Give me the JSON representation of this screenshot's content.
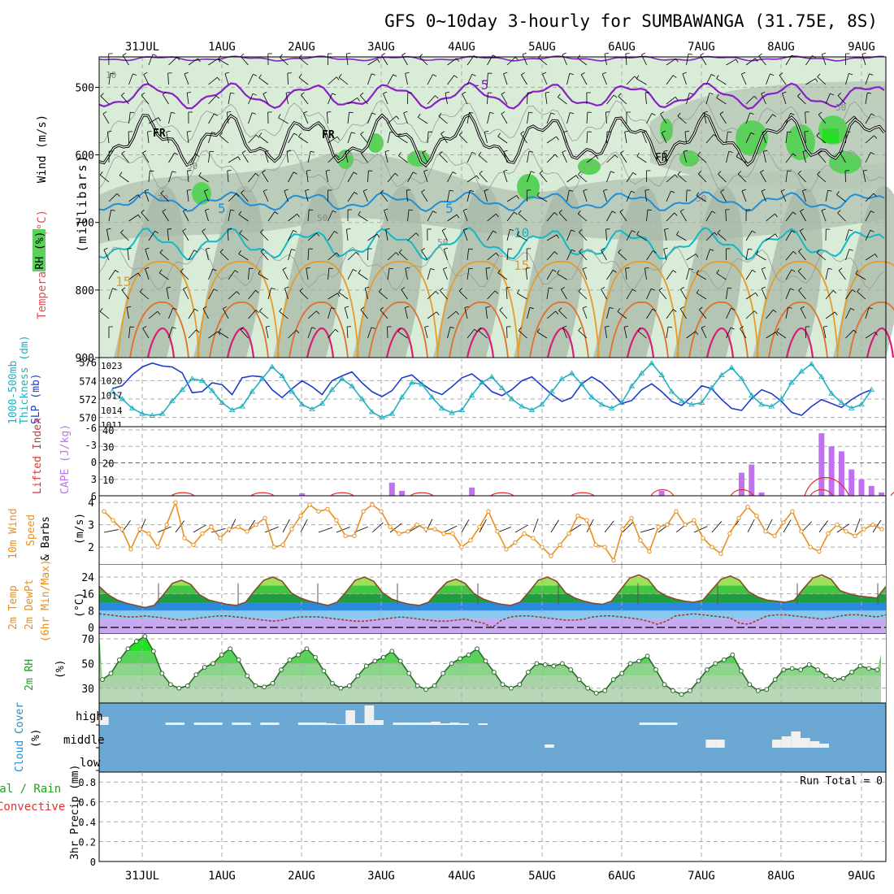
{
  "title": "GFS 0~10day 3-hourly for SUMBAWANGA (31.75E, 8S)",
  "dates": [
    "31JUL",
    "1AUG",
    "2AUG",
    "3AUG",
    "4AUG",
    "5AUG",
    "6AUG",
    "7AUG",
    "8AUG",
    "9AUG"
  ],
  "run_total": "Run Total = 0",
  "colors": {
    "rh_fill": "#d8ecd8",
    "rh_grey": "#a8b8a8",
    "rh_green": "#5ad25a",
    "temp_m5": "#8a1fc8",
    "temp_5": "#1f8fd8",
    "temp_10": "#12b8c8",
    "temp_15": "#e89a2a",
    "temp_20": "#e0702a",
    "temp_25": "#d81e78",
    "thickness": "#20b0c0",
    "slp": "#1e3cc8",
    "cape": "#c070f0",
    "li": "#e03030",
    "wind": "#e8901e",
    "cloud": "#6ba8d4"
  },
  "panels": {
    "upper": {
      "ylabel_wind": "Wind (m/s)",
      "ylabel_temp": "Temperature (°C)",
      "ylabel_rh": "RH (%)",
      "ylabel_mb": "(millibars)",
      "yticks": [
        "500",
        "600",
        "700",
        "800",
        "900"
      ],
      "contour_labels": {
        "fr": "FR",
        "m5": "-5",
        "p5": "5",
        "p10": "10",
        "p15": "15",
        "rh10": "10",
        "rh30": "30",
        "rh50": "50"
      }
    },
    "thickness": {
      "ylabel_a": "1000-500mb",
      "ylabel_b": "Thickness (dm)",
      "ylabel_c": "SLP (mb)",
      "ticks_left": [
        "576",
        "574",
        "572",
        "570"
      ],
      "ticks_right": [
        "1023",
        "1020",
        "1017",
        "1014",
        "1011"
      ]
    },
    "cape": {
      "ylabel_a": "Lifted Index",
      "ylabel_b": "CAPE (J/kg)",
      "ticks_left": [
        "-6",
        "-3",
        "0",
        "3",
        "6"
      ],
      "ticks_right": [
        "40",
        "30",
        "20",
        "10"
      ]
    },
    "wind": {
      "ylabel_a": "10m Wind",
      "ylabel_b": "Speed",
      "ylabel_c": "& Barbs",
      "ylabel_d": "(m/s)",
      "ticks": [
        "4",
        "3",
        "2"
      ]
    },
    "temp": {
      "ylabel_a": "2m Temp",
      "ylabel_b": "2m DewPt",
      "ylabel_c": "(6hr Min/Max)",
      "ylabel_d": "(°C)",
      "ticks": [
        "24",
        "16",
        "8",
        "0"
      ]
    },
    "rh": {
      "ylabel_a": "2m RH",
      "ylabel_b": "(%)",
      "ticks": [
        "70",
        "50",
        "30"
      ]
    },
    "cloud": {
      "ylabel_a": "Cloud Cover",
      "ylabel_b": "(%)",
      "levels": [
        "high",
        "middle",
        "low"
      ]
    },
    "precip": {
      "ylabel_a": "Total / Rain",
      "ylabel_b": "Convective",
      "ylabel_c": "3hr Precip (mm)",
      "ticks": [
        "0.8",
        "0.6",
        "0.4",
        "0.2",
        "0"
      ]
    }
  },
  "chart_data": [
    {
      "type": "line",
      "name": "thickness-slp",
      "x_unit": "3-hour steps from 30 Jul 15Z",
      "series": [
        {
          "name": "1000-500mb Thickness (dm)",
          "values": [
            572.8,
            572.0,
            571.0,
            570.4,
            570.2,
            570.4,
            571.8,
            573.0,
            574.2,
            574.0,
            572.9,
            571.6,
            570.8,
            571.2,
            572.8,
            574.2,
            575.5,
            574.5,
            572.8,
            571.4,
            570.9,
            571.5,
            573.0,
            574.2,
            573.4,
            572.0,
            570.6,
            570.0,
            570.4,
            572.2,
            573.8,
            573.6,
            572.2,
            571.0,
            570.5,
            570.8,
            572.4,
            573.8,
            574.4,
            573.2,
            572.0,
            571.2,
            570.8,
            571.4,
            572.8,
            574.2,
            574.8,
            573.6,
            572.2,
            571.4,
            571.0,
            571.6,
            573.4,
            574.8,
            575.9,
            574.6,
            572.8,
            571.8,
            571.4,
            571.6,
            573.2,
            574.6,
            575.4,
            574.2,
            572.4,
            571.4,
            571.2,
            572.0,
            573.8,
            575.0,
            575.8,
            574.4,
            572.6,
            571.6,
            571.0,
            571.4,
            573.0
          ]
        },
        {
          "name": "SLP (mb)",
          "values": [
            1018.2,
            1018.8,
            1021.0,
            1022.6,
            1023.4,
            1022.8,
            1022.6,
            1021.4,
            1017.4,
            1017.6,
            1019.4,
            1019.0,
            1017.0,
            1020.4,
            1020.8,
            1020.6,
            1018.0,
            1016.4,
            1018.2,
            1019.8,
            1018.6,
            1017.0,
            1019.8,
            1020.8,
            1021.6,
            1019.4,
            1017.6,
            1016.6,
            1017.8,
            1020.4,
            1021.0,
            1019.2,
            1017.8,
            1017.0,
            1018.6,
            1020.4,
            1021.2,
            1019.6,
            1017.6,
            1016.8,
            1018.0,
            1019.8,
            1020.6,
            1018.8,
            1017.0,
            1015.6,
            1016.4,
            1019.2,
            1020.6,
            1019.4,
            1017.4,
            1015.2,
            1015.8,
            1018.0,
            1019.2,
            1017.6,
            1015.6,
            1014.8,
            1016.6,
            1018.8,
            1018.2,
            1016.0,
            1014.2,
            1013.8,
            1016.2,
            1018.0,
            1017.2,
            1015.6,
            1013.4,
            1012.8,
            1014.6,
            1016.0,
            1015.2,
            1014.4,
            1016.0,
            1017.2,
            1018.0
          ]
        }
      ]
    },
    {
      "type": "bar",
      "name": "cape",
      "x_unit": "3-hour steps from 30 Jul 15Z",
      "y_unit": "J/kg",
      "bars": [
        {
          "x": 19,
          "value": 1.5
        },
        {
          "x": 28,
          "value": 8.0
        },
        {
          "x": 29,
          "value": 3.0
        },
        {
          "x": 36,
          "value": 5.0
        },
        {
          "x": 55,
          "value": 3.0
        },
        {
          "x": 63,
          "value": 14.0
        },
        {
          "x": 64,
          "value": 19.0
        },
        {
          "x": 65,
          "value": 2.0
        },
        {
          "x": 71,
          "value": 38.0
        },
        {
          "x": 72,
          "value": 30.0
        },
        {
          "x": 73,
          "value": 27.0
        },
        {
          "x": 74,
          "value": 16.0
        },
        {
          "x": 75,
          "value": 10.0
        },
        {
          "x": 76,
          "value": 6.0
        },
        {
          "x": 77,
          "value": 2.0
        }
      ]
    },
    {
      "type": "line",
      "name": "10m-wind-speed",
      "x_unit": "3-hour steps from 30 Jul 15Z",
      "y_unit": "m/s",
      "values": [
        3.6,
        3.2,
        2.8,
        1.9,
        2.8,
        2.6,
        2.0,
        3.0,
        4.0,
        2.4,
        2.1,
        2.6,
        2.9,
        2.4,
        2.8,
        2.9,
        2.7,
        3.0,
        3.3,
        2.0,
        2.1,
        2.8,
        3.4,
        3.9,
        3.6,
        3.7,
        3.2,
        2.5,
        2.5,
        3.6,
        3.9,
        3.6,
        2.9,
        2.6,
        2.7,
        3.0,
        2.8,
        2.8,
        2.6,
        2.6,
        2.0,
        2.3,
        2.9,
        3.6,
        2.7,
        1.9,
        2.2,
        2.6,
        2.4,
        2.0,
        1.6,
        2.1,
        2.6,
        3.4,
        3.2,
        2.1,
        2.0,
        1.4,
        2.8,
        3.3,
        2.3,
        1.8,
        2.9,
        3.0,
        3.6,
        3.0,
        3.2,
        2.4,
        2.0,
        1.7,
        2.6,
        3.3,
        3.8,
        3.4,
        2.7,
        2.5,
        3.1,
        3.6,
        2.7,
        2.0,
        1.8,
        2.6,
        3.0,
        2.7,
        2.5,
        2.8,
        3.0,
        2.8
      ]
    },
    {
      "type": "area",
      "name": "2m-temperature",
      "x_unit": "3-hour steps from 30 Jul 15Z",
      "y_unit": "°C",
      "series": [
        {
          "name": "2m Temp",
          "values": [
            19.5,
            15.5,
            13.0,
            11.5,
            10.5,
            9.5,
            10.5,
            15.5,
            21.0,
            22.5,
            20.5,
            15.5,
            13.0,
            12.0,
            11.0,
            10.5,
            12.0,
            17.5,
            22.5,
            24.0,
            22.0,
            16.5,
            14.0,
            12.5,
            11.5,
            10.5,
            12.0,
            17.0,
            22.5,
            24.0,
            22.0,
            16.5,
            13.5,
            12.0,
            11.0,
            10.5,
            12.0,
            17.0,
            21.5,
            23.0,
            21.0,
            16.0,
            13.5,
            12.0,
            11.0,
            10.5,
            12.0,
            17.0,
            22.5,
            24.0,
            22.0,
            16.5,
            14.0,
            12.5,
            11.5,
            11.0,
            12.5,
            18.0,
            23.5,
            25.0,
            23.0,
            17.5,
            15.0,
            13.5,
            12.5,
            12.0,
            13.0,
            18.0,
            23.0,
            24.5,
            22.5,
            17.0,
            14.5,
            13.0,
            12.5,
            12.0,
            13.0,
            18.5,
            23.5,
            25.0,
            23.0,
            17.5,
            16.0,
            15.0,
            14.5,
            14.0,
            19.5
          ]
        },
        {
          "name": "2m DewPt",
          "values": [
            6.5,
            6.0,
            5.5,
            5.0,
            5.0,
            5.5,
            5.0,
            4.5,
            4.0,
            3.5,
            4.0,
            4.5,
            5.0,
            5.5,
            5.5,
            5.0,
            4.5,
            4.0,
            3.5,
            3.0,
            3.5,
            4.5,
            5.0,
            5.0,
            5.0,
            4.5,
            4.0,
            3.5,
            3.0,
            3.0,
            3.5,
            4.0,
            4.5,
            5.0,
            4.5,
            4.0,
            3.5,
            3.0,
            3.0,
            3.5,
            4.0,
            3.0,
            2.0,
            0.0,
            3.5,
            5.0,
            5.5,
            5.5,
            5.0,
            4.5,
            4.0,
            3.5,
            3.5,
            4.0,
            5.0,
            5.5,
            5.5,
            5.0,
            4.5,
            4.0,
            3.0,
            1.5,
            3.0,
            5.5,
            6.0,
            6.5,
            6.0,
            5.5,
            5.0,
            4.5,
            2.0,
            1.5,
            3.5,
            5.5,
            6.0,
            6.0,
            5.5,
            5.0,
            4.5,
            4.0,
            4.5,
            5.5,
            6.0,
            6.0,
            5.5,
            5.0,
            6.0
          ]
        }
      ]
    },
    {
      "type": "area",
      "name": "2m-relative-humidity",
      "x_unit": "3-hour steps from 30 Jul 15Z",
      "y_unit": "%",
      "values": [
        37,
        42,
        53,
        62,
        68,
        72,
        60,
        42,
        33,
        30,
        32,
        41,
        47,
        50,
        57,
        62,
        53,
        40,
        32,
        31,
        34,
        45,
        53,
        57,
        62,
        55,
        44,
        34,
        30,
        32,
        40,
        48,
        52,
        55,
        60,
        52,
        42,
        32,
        29,
        32,
        42,
        50,
        54,
        57,
        62,
        52,
        43,
        33,
        30,
        33,
        43,
        50,
        49,
        48,
        50,
        45,
        37,
        30,
        26,
        28,
        37,
        42,
        50,
        52,
        56,
        45,
        33,
        28,
        25,
        28,
        36,
        45,
        50,
        53,
        57,
        44,
        33,
        28,
        29,
        37,
        45,
        46,
        45,
        49,
        45,
        40,
        37,
        38,
        43,
        48,
        46,
        45
      ]
    },
    {
      "type": "bar",
      "name": "cloud-cover",
      "x_unit": "3-hour steps from 30 Jul 15Z",
      "y_unit": "%",
      "high": [
        10,
        0,
        0,
        0,
        0,
        0,
        0,
        3,
        3,
        0,
        3,
        3,
        3,
        0,
        3,
        3,
        0,
        3,
        3,
        0,
        0,
        3,
        3,
        3,
        2,
        1,
        0,
        2,
        0,
        0,
        0,
        3,
        3,
        3,
        3,
        4,
        2,
        3,
        2,
        0,
        2,
        0,
        0,
        0,
        0,
        0,
        0,
        0,
        0,
        0,
        0,
        0,
        0,
        0,
        0,
        0,
        0,
        3,
        3,
        3,
        3,
        0,
        0,
        0,
        0,
        0,
        0,
        0,
        0,
        0,
        0,
        0,
        0,
        0,
        0,
        0,
        0,
        0,
        0,
        0,
        0,
        0,
        0
      ],
      "high_spikes": [
        {
          "x": 26,
          "value": 18
        },
        {
          "x": 28,
          "value": 24
        },
        {
          "x": 29,
          "value": 6
        }
      ],
      "middle": [
        {
          "x": 47,
          "value": 4
        },
        {
          "x": 64,
          "value": 10
        },
        {
          "x": 65,
          "value": 10
        },
        {
          "x": 71,
          "value": 10
        },
        {
          "x": 72,
          "value": 14
        },
        {
          "x": 73,
          "value": 20
        },
        {
          "x": 74,
          "value": 12
        },
        {
          "x": 75,
          "value": 8
        },
        {
          "x": 76,
          "value": 5
        }
      ]
    },
    {
      "type": "bar",
      "name": "3hr-precip",
      "y_unit": "mm",
      "ylim": [
        0,
        0.9
      ],
      "values": []
    }
  ]
}
